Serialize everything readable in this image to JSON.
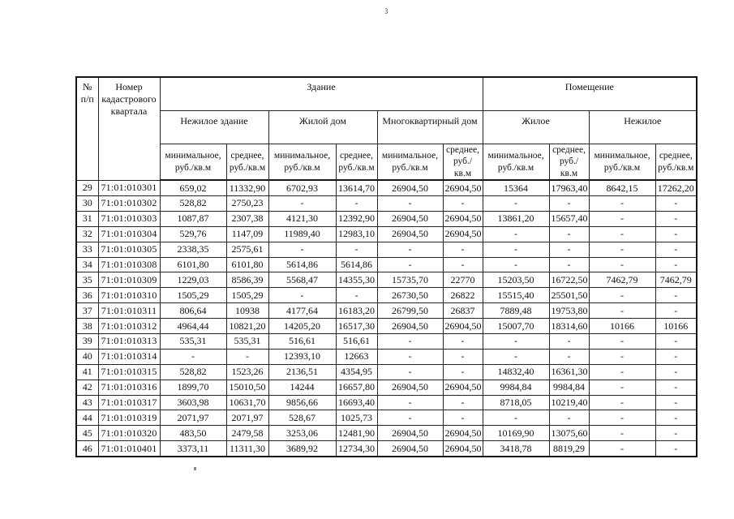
{
  "page": {
    "page_number": "3"
  },
  "table": {
    "header": {
      "row_num": "№\nп/п",
      "cadastral": "Номер\nкадастрового\nквартала",
      "building_group": "Здание",
      "premise_group": "Помещение",
      "subgroups": [
        "Нежилое здание",
        "Жилой дом",
        "Многоквартирный дом",
        "Жилое",
        "Нежилое"
      ],
      "min_label": "минимальное,\nруб./кв.м",
      "avg_label": "среднее,\nруб./кв.м"
    },
    "rows": [
      [
        "29",
        "71:01:010301",
        "659,02",
        "11332,90",
        "6702,93",
        "13614,70",
        "26904,50",
        "26904,50",
        "15364",
        "17963,40",
        "8642,15",
        "17262,20"
      ],
      [
        "30",
        "71:01:010302",
        "528,82",
        "2750,23",
        "-",
        "-",
        "-",
        "-",
        "-",
        "-",
        "-",
        "-"
      ],
      [
        "31",
        "71:01:010303",
        "1087,87",
        "2307,38",
        "4121,30",
        "12392,90",
        "26904,50",
        "26904,50",
        "13861,20",
        "15657,40",
        "-",
        "-"
      ],
      [
        "32",
        "71:01:010304",
        "529,76",
        "1147,09",
        "11989,40",
        "12983,10",
        "26904,50",
        "26904,50",
        "-",
        "-",
        "-",
        "-"
      ],
      [
        "33",
        "71:01:010305",
        "2338,35",
        "2575,61",
        "-",
        "-",
        "-",
        "-",
        "-",
        "-",
        "-",
        "-"
      ],
      [
        "34",
        "71:01:010308",
        "6101,80",
        "6101,80",
        "5614,86",
        "5614,86",
        "-",
        "-",
        "-",
        "-",
        "-",
        "-"
      ],
      [
        "35",
        "71:01:010309",
        "1229,03",
        "8586,39",
        "5568,47",
        "14355,30",
        "15735,70",
        "22770",
        "15203,50",
        "16722,50",
        "7462,79",
        "7462,79"
      ],
      [
        "36",
        "71:01:010310",
        "1505,29",
        "1505,29",
        "-",
        "-",
        "26730,50",
        "26822",
        "15515,40",
        "25501,50",
        "-",
        "-"
      ],
      [
        "37",
        "71:01:010311",
        "806,64",
        "10938",
        "4177,64",
        "16183,20",
        "26799,50",
        "26837",
        "7889,48",
        "19753,80",
        "-",
        "-"
      ],
      [
        "38",
        "71:01:010312",
        "4964,44",
        "10821,20",
        "14205,20",
        "16517,30",
        "26904,50",
        "26904,50",
        "15007,70",
        "18314,60",
        "10166",
        "10166"
      ],
      [
        "39",
        "71:01:010313",
        "535,31",
        "535,31",
        "516,61",
        "516,61",
        "-",
        "-",
        "-",
        "-",
        "-",
        "-"
      ],
      [
        "40",
        "71:01:010314",
        "-",
        "-",
        "12393,10",
        "12663",
        "-",
        "-",
        "-",
        "-",
        "-",
        "-"
      ],
      [
        "41",
        "71:01:010315",
        "528,82",
        "1523,26",
        "2136,51",
        "4354,95",
        "-",
        "-",
        "14832,40",
        "16361,30",
        "-",
        "-"
      ],
      [
        "42",
        "71:01:010316",
        "1899,70",
        "15010,50",
        "14244",
        "16657,80",
        "26904,50",
        "26904,50",
        "9984,84",
        "9984,84",
        "-",
        "-"
      ],
      [
        "43",
        "71:01:010317",
        "3603,98",
        "10631,70",
        "9856,66",
        "16693,40",
        "-",
        "-",
        "8718,05",
        "10219,40",
        "-",
        "-"
      ],
      [
        "44",
        "71:01:010319",
        "2071,97",
        "2071,97",
        "528,67",
        "1025,73",
        "-",
        "-",
        "-",
        "-",
        "-",
        "-"
      ],
      [
        "45",
        "71:01:010320",
        "483,50",
        "2479,58",
        "3253,06",
        "12481,90",
        "26904,50",
        "26904,50",
        "10169,90",
        "13075,60",
        "-",
        "-"
      ],
      [
        "46",
        "71:01:010401",
        "3373,11",
        "11311,30",
        "3689,92",
        "12734,30",
        "26904,50",
        "26904,50",
        "3418,78",
        "8819,29",
        "-",
        "-"
      ]
    ]
  }
}
